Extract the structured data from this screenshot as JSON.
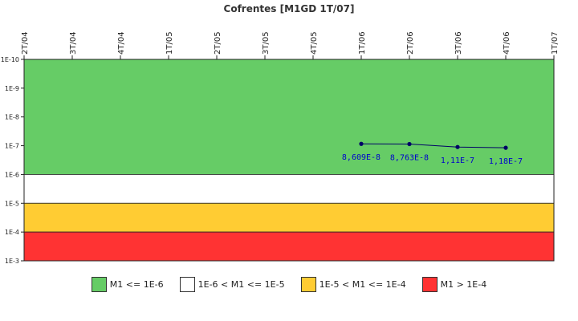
{
  "chart_data": {
    "type": "line",
    "title": "Cofrentes [M1GD 1T/07]",
    "categories": [
      "2T/04",
      "3T/04",
      "4T/04",
      "1T/05",
      "2T/05",
      "3T/05",
      "4T/05",
      "1T/06",
      "2T/06",
      "3T/06",
      "4T/06",
      "1T/07"
    ],
    "y_axis": {
      "scale": "log",
      "reversed": true,
      "range": [
        "1E-10",
        "1E-3"
      ],
      "tick_labels": [
        "1E-10",
        "1E-9",
        "1E-8",
        "1E-7",
        "1E-6",
        "1E-5",
        "1E-4",
        "1E-3"
      ]
    },
    "series": [
      {
        "color": "#000066",
        "points": [
          {
            "x": "1T/06",
            "y": 8.609e-08,
            "label": "8,609E-8"
          },
          {
            "x": "2T/06",
            "y": 8.763e-08,
            "label": "8,763E-8"
          },
          {
            "x": "3T/06",
            "y": 1.11e-07,
            "label": "1,11E-7"
          },
          {
            "x": "4T/06",
            "y": 1.18e-07,
            "label": "1,18E-7"
          }
        ]
      }
    ],
    "bands": [
      {
        "label": "M1 <= 1E-6",
        "from": 1e-10,
        "to": 1e-06,
        "color": "#66cc66"
      },
      {
        "label": "1E-6 < M1 <= 1E-5",
        "from": 1e-06,
        "to": 1e-05,
        "color": "#ffffff"
      },
      {
        "label": "1E-5 < M1 <= 1E-4",
        "from": 1e-05,
        "to": 0.0001,
        "color": "#ffcc33"
      },
      {
        "label": "M1 > 1E-4",
        "from": 0.0001,
        "to": 0.001,
        "color": "#ff3333"
      }
    ],
    "legend_position": "bottom",
    "grid": false
  }
}
